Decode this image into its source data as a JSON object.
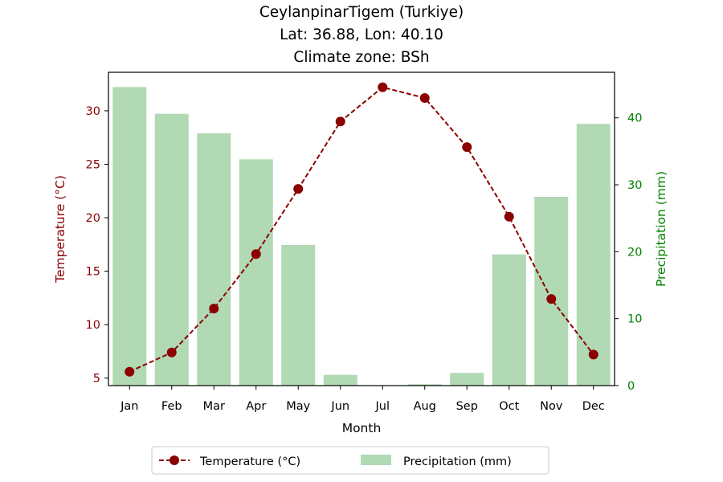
{
  "colors": {
    "temperature": "#8b0000",
    "precipitation": "#b1d9b3",
    "precip_axis": "#008000",
    "frame": "#000000"
  },
  "chart_data": {
    "type": "bar+line",
    "title_lines": [
      "CeylanpinarTigem (Turkiye)",
      "Lat: 36.88, Lon: 40.10",
      "Climate zone: BSh"
    ],
    "xlabel": "Month",
    "ylabel_left": "Temperature (°C)",
    "ylabel_right": "Precipitation (mm)",
    "categories": [
      "Jan",
      "Feb",
      "Mar",
      "Apr",
      "May",
      "Jun",
      "Jul",
      "Aug",
      "Sep",
      "Oct",
      "Nov",
      "Dec"
    ],
    "temperature": {
      "name": "Temperature (°C)",
      "values": [
        5.6,
        7.4,
        11.5,
        16.6,
        22.7,
        29.0,
        32.2,
        31.2,
        26.6,
        20.1,
        12.4,
        7.2
      ],
      "ylim": [
        4.3,
        33.6
      ],
      "ticks": [
        5,
        10,
        15,
        20,
        25,
        30
      ]
    },
    "precipitation": {
      "name": "Precipitation (mm)",
      "values": [
        44.6,
        40.6,
        37.7,
        33.8,
        21.0,
        1.6,
        0.0,
        0.2,
        1.9,
        19.6,
        28.2,
        39.1
      ],
      "ylim": [
        0,
        46.8
      ],
      "ticks": [
        0,
        10,
        20,
        30,
        40
      ]
    },
    "legend": [
      "Temperature (°C)",
      "Precipitation (mm)"
    ],
    "legend_position": "bottom-center",
    "grid": false
  }
}
